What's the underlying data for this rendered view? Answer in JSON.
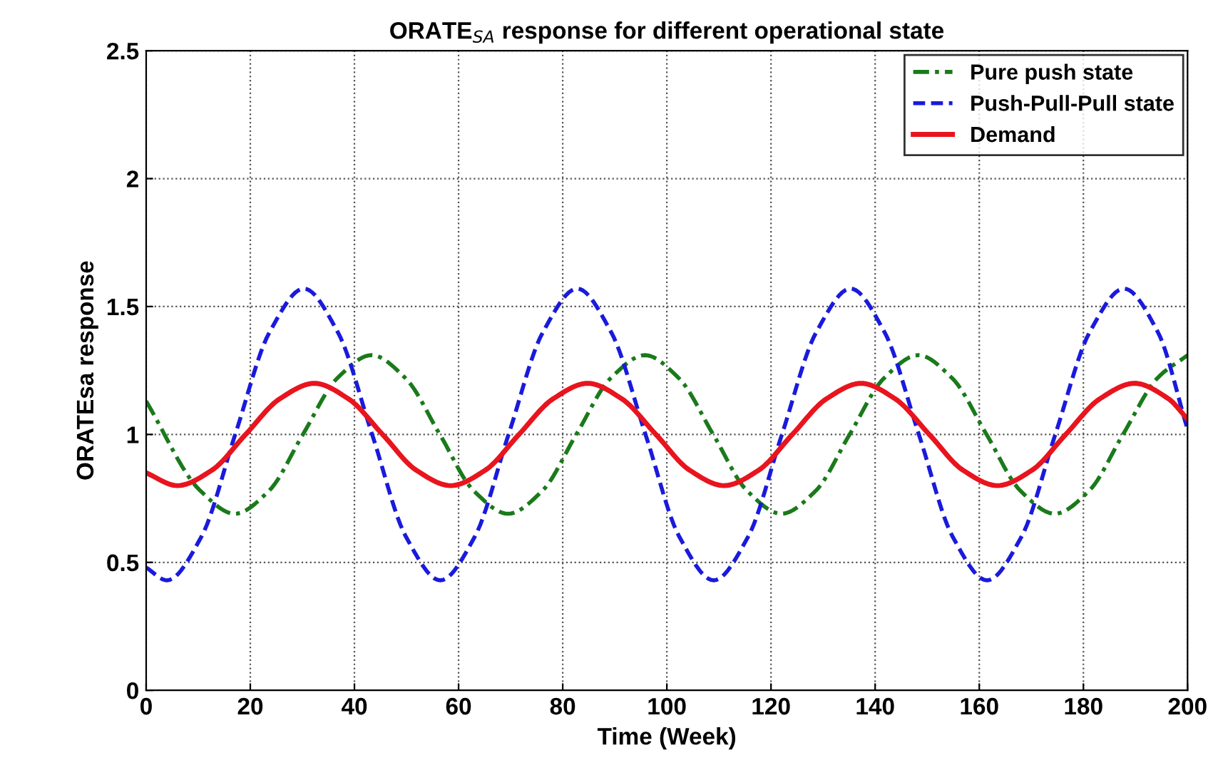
{
  "chart_data": {
    "type": "line",
    "title": "ORATE$_{SA}$ response for different operational state",
    "xlabel": "Time (Week)",
    "ylabel": "ORATEsa response",
    "xlim": [
      0,
      200
    ],
    "xticks": [
      0,
      20,
      40,
      60,
      80,
      100,
      120,
      140,
      160,
      180,
      200
    ],
    "ylim": [
      0,
      2.5
    ],
    "yticks": [
      0,
      0.5,
      1,
      1.5,
      2,
      2.5
    ],
    "grid": true,
    "legend": "top right",
    "marker": "none",
    "series": [
      {
        "name": "Pure push state",
        "color": "#1a7a1a",
        "line_style": "dashdot",
        "x": [
          0,
          10.4,
          17,
          23.6,
          30.1,
          36.7,
          43.3,
          49.8,
          56.4,
          62.9,
          69.5,
          76.1,
          82.6,
          89.2,
          95.8,
          102.3,
          108.9,
          115.4,
          122,
          128.6,
          135.1,
          141.7,
          148.3,
          154.8,
          161.4,
          167.9,
          174.5,
          181.1,
          187.6,
          194.2,
          200
        ],
        "values": [
          1.13,
          0.78,
          0.69,
          0.78,
          1.0,
          1.22,
          1.31,
          1.22,
          1.0,
          0.78,
          0.69,
          0.78,
          1.0,
          1.22,
          1.31,
          1.22,
          1.0,
          0.78,
          0.69,
          0.78,
          1.0,
          1.22,
          1.31,
          1.22,
          1.0,
          0.78,
          0.69,
          0.78,
          1.0,
          1.22,
          1.31
        ]
      },
      {
        "name": "Push-Pull-Pull state",
        "color": "#1a1adc",
        "line_style": "dashed",
        "x": [
          0,
          4,
          10.6,
          17.1,
          23.7,
          30.3,
          36.8,
          43.4,
          49.9,
          56.5,
          63.1,
          69.6,
          76.2,
          82.8,
          89.3,
          95.9,
          102.4,
          109,
          115.6,
          122.1,
          128.7,
          135.3,
          141.8,
          148.4,
          154.9,
          161.5,
          168.1,
          174.6,
          181.2,
          187.8,
          194.3,
          200
        ],
        "values": [
          0.48,
          0.43,
          0.6,
          1.0,
          1.4,
          1.57,
          1.4,
          1.0,
          0.6,
          0.43,
          0.6,
          1.0,
          1.4,
          1.57,
          1.4,
          1.0,
          0.6,
          0.43,
          0.6,
          1.0,
          1.4,
          1.57,
          1.4,
          1.0,
          0.6,
          0.43,
          0.6,
          1.0,
          1.4,
          1.57,
          1.4,
          1.02
        ]
      },
      {
        "name": "Demand",
        "color": "#e8141e",
        "line_style": "solid",
        "x": [
          0,
          6,
          12.6,
          19.1,
          25.7,
          32.3,
          38.8,
          45.4,
          51.9,
          58.5,
          65.1,
          71.6,
          78.2,
          84.8,
          91.3,
          97.9,
          104.4,
          111,
          117.6,
          124.1,
          130.7,
          137.3,
          143.8,
          150.4,
          156.9,
          163.5,
          170.1,
          176.6,
          183.2,
          189.8,
          196.3,
          200
        ],
        "values": [
          0.85,
          0.8,
          0.86,
          1.0,
          1.14,
          1.2,
          1.14,
          1.0,
          0.86,
          0.8,
          0.86,
          1.0,
          1.14,
          1.2,
          1.14,
          1.0,
          0.86,
          0.8,
          0.86,
          1.0,
          1.14,
          1.2,
          1.14,
          1.0,
          0.86,
          0.8,
          0.86,
          1.0,
          1.14,
          1.2,
          1.14,
          1.06
        ]
      }
    ]
  }
}
